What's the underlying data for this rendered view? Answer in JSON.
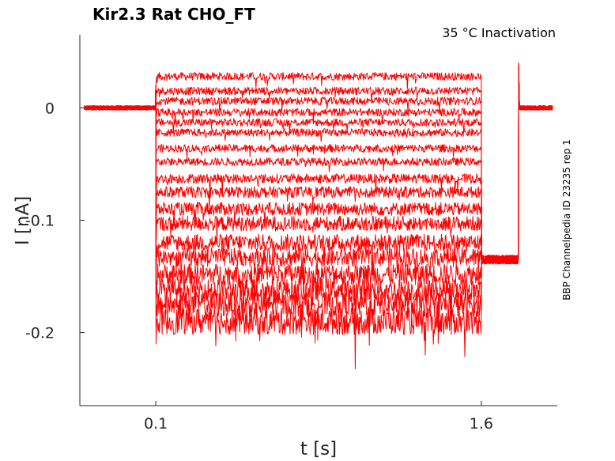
{
  "chart_data": {
    "type": "line",
    "title": "Kir2.3  Rat  CHO_FT",
    "subtitle": "35 °C  Inactivation",
    "xlabel": "t [s]",
    "ylabel": "I [nA]",
    "side_note": "BBP Channelpedia ID 23235 rep 1",
    "xlim": [
      -0.25,
      1.95
    ],
    "ylim": [
      -0.265,
      0.065
    ],
    "x_ticks": [
      0.1,
      1.6
    ],
    "x_tick_labels": [
      "0.1",
      "1.6"
    ],
    "y_ticks": [
      0,
      -0.1,
      -0.2
    ],
    "y_tick_labels": [
      "0",
      "-0.1",
      "-0.2"
    ],
    "grid": false,
    "series_color": "#ff0000",
    "step_start": 0.1,
    "step_end": 1.6,
    "recovery_end": 1.77,
    "baseline_current": 0,
    "tail_current": -0.135,
    "trace_levels": [
      0.028,
      0.015,
      0.006,
      -0.004,
      -0.013,
      -0.022,
      -0.036,
      -0.048,
      -0.063,
      -0.075,
      -0.09,
      -0.103,
      -0.12,
      -0.133,
      -0.148,
      -0.162,
      -0.175,
      -0.19
    ]
  }
}
